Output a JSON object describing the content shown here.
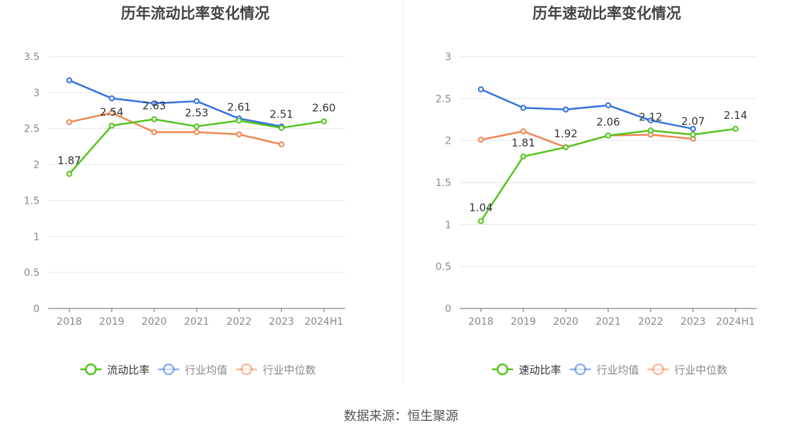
{
  "source_text": "数据来源：恒生聚源",
  "colors": {
    "company": "#52c41a",
    "industry_avg": "#3370e0",
    "industry_median": "#f08650",
    "grid": "#e6e6e6",
    "axis": "#666666",
    "tick_text": "#888888",
    "title_text": "#444444"
  },
  "chart_data": [
    {
      "type": "line",
      "title": "历年流动比率变化情况",
      "categories": [
        "2018",
        "2019",
        "2020",
        "2021",
        "2022",
        "2023",
        "2024H1"
      ],
      "y_ticks": [
        "0",
        "0.5",
        "1",
        "1.5",
        "2",
        "2.5",
        "3",
        "3.5"
      ],
      "ylim": [
        0,
        3.5
      ],
      "grid": true,
      "legend_position": "bottom-center",
      "series": [
        {
          "name": "流动比率",
          "color_key": "company",
          "values": [
            1.87,
            2.54,
            2.63,
            2.53,
            2.61,
            2.51,
            2.6
          ],
          "labels": [
            "1.87",
            "2.54",
            "2.63",
            "2.53",
            "2.61",
            "2.51",
            "2.60"
          ]
        },
        {
          "name": "行业均值",
          "color_key": "industry_avg",
          "values": [
            3.17,
            2.92,
            2.85,
            2.88,
            2.64,
            2.53,
            null
          ]
        },
        {
          "name": "行业中位数",
          "color_key": "industry_median",
          "values": [
            2.59,
            2.72,
            2.45,
            2.45,
            2.42,
            2.28,
            null
          ]
        }
      ]
    },
    {
      "type": "line",
      "title": "历年速动比率变化情况",
      "categories": [
        "2018",
        "2019",
        "2020",
        "2021",
        "2022",
        "2023",
        "2024H1"
      ],
      "y_ticks": [
        "0",
        "0.5",
        "1",
        "1.5",
        "2",
        "2.5",
        "3"
      ],
      "ylim": [
        0,
        3
      ],
      "grid": true,
      "legend_position": "bottom-center",
      "series": [
        {
          "name": "速动比率",
          "color_key": "company",
          "values": [
            1.04,
            1.81,
            1.92,
            2.06,
            2.12,
            2.07,
            2.14
          ],
          "labels": [
            "1.04",
            "1.81",
            "1.92",
            "2.06",
            "2.12",
            "2.07",
            "2.14"
          ]
        },
        {
          "name": "行业均值",
          "color_key": "industry_avg",
          "values": [
            2.61,
            2.39,
            2.37,
            2.42,
            2.24,
            2.14,
            null
          ]
        },
        {
          "name": "行业中位数",
          "color_key": "industry_median",
          "values": [
            2.01,
            2.11,
            1.92,
            2.06,
            2.07,
            2.02,
            null
          ]
        }
      ]
    }
  ]
}
